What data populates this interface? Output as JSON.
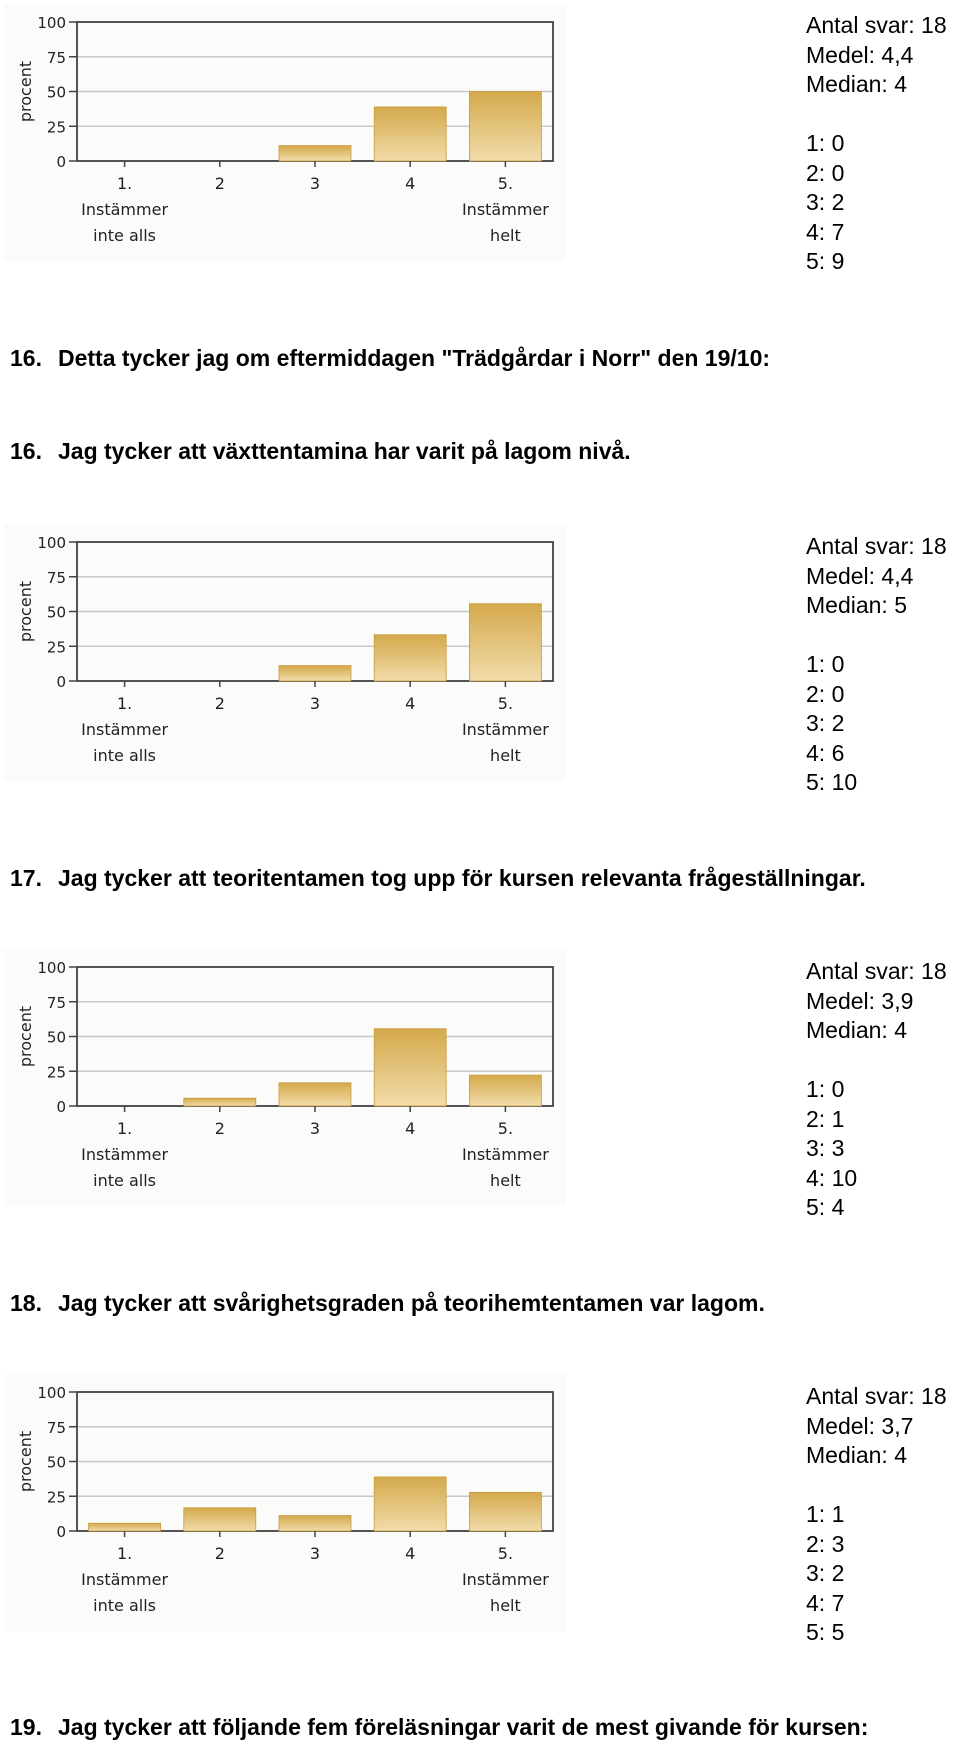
{
  "scale": {
    "y_label": "procent",
    "y_ticks": [
      "100",
      "75",
      "50",
      "25",
      "0"
    ],
    "x_labels": [
      [
        "1.",
        "Instämmer",
        "inte alls"
      ],
      [
        "2"
      ],
      [
        "3"
      ],
      [
        "4"
      ],
      [
        "5.",
        "Instämmer",
        "helt"
      ]
    ]
  },
  "colors": {
    "bar_top": "#d4a94c",
    "bar_bottom": "#f1dcaa",
    "bar_edge": "#c99a3c",
    "frame": "#444444",
    "grid": "#c8c8c8"
  },
  "headings": [
    {
      "number": "16.",
      "text": "Detta tycker jag om eftermiddagen \"Trädgårdar i Norr\" den 19/10:"
    },
    {
      "number": "16.",
      "text": "Jag tycker att växttentamina har varit på lagom nivå."
    },
    {
      "number": "17.",
      "text": "Jag tycker att teoritentamen tog upp för kursen relevanta frågeställningar."
    },
    {
      "number": "18.",
      "text": "Jag tycker att svårighetsgraden på teorihemtentamen var lagom."
    },
    {
      "number": "19.",
      "text": "Jag tycker att följande fem föreläsningar varit de mest givande för kursen:"
    }
  ],
  "stats": [
    {
      "antal": "Antal svar: 18",
      "medel": "Medel: 4,4",
      "median": "Median: 4",
      "counts": [
        "1: 0",
        "2: 0",
        "3: 2",
        "4: 7",
        "5: 9"
      ]
    },
    {
      "antal": "Antal svar: 18",
      "medel": "Medel: 4,4",
      "median": "Median: 5",
      "counts": [
        "1: 0",
        "2: 0",
        "3: 2",
        "4: 6",
        "5: 10"
      ]
    },
    {
      "antal": "Antal svar: 18",
      "medel": "Medel: 3,9",
      "median": "Median: 4",
      "counts": [
        "1: 0",
        "2: 1",
        "3: 3",
        "4: 10",
        "5: 4"
      ]
    },
    {
      "antal": "Antal svar: 18",
      "medel": "Medel: 3,7",
      "median": "Median: 4",
      "counts": [
        "1: 1",
        "2: 3",
        "3: 2",
        "4: 7",
        "5: 5"
      ]
    }
  ],
  "chart_data": [
    {
      "type": "bar",
      "categories": [
        "1.",
        "2",
        "3",
        "4",
        "5."
      ],
      "values": [
        0,
        0,
        11.1,
        38.9,
        50
      ],
      "ylabel": "procent",
      "ylim": [
        0,
        100
      ],
      "grid": true
    },
    {
      "type": "bar",
      "categories": [
        "1.",
        "2",
        "3",
        "4",
        "5."
      ],
      "values": [
        0,
        0,
        11.1,
        33.3,
        55.6
      ],
      "ylabel": "procent",
      "ylim": [
        0,
        100
      ],
      "grid": true
    },
    {
      "type": "bar",
      "categories": [
        "1.",
        "2",
        "3",
        "4",
        "5."
      ],
      "values": [
        0,
        5.6,
        16.7,
        55.6,
        22.2
      ],
      "ylabel": "procent",
      "ylim": [
        0,
        100
      ],
      "grid": true
    },
    {
      "type": "bar",
      "categories": [
        "1.",
        "2",
        "3",
        "4",
        "5."
      ],
      "values": [
        5.6,
        16.7,
        11.1,
        38.9,
        27.8
      ],
      "ylabel": "procent",
      "ylim": [
        0,
        100
      ],
      "grid": true
    }
  ]
}
